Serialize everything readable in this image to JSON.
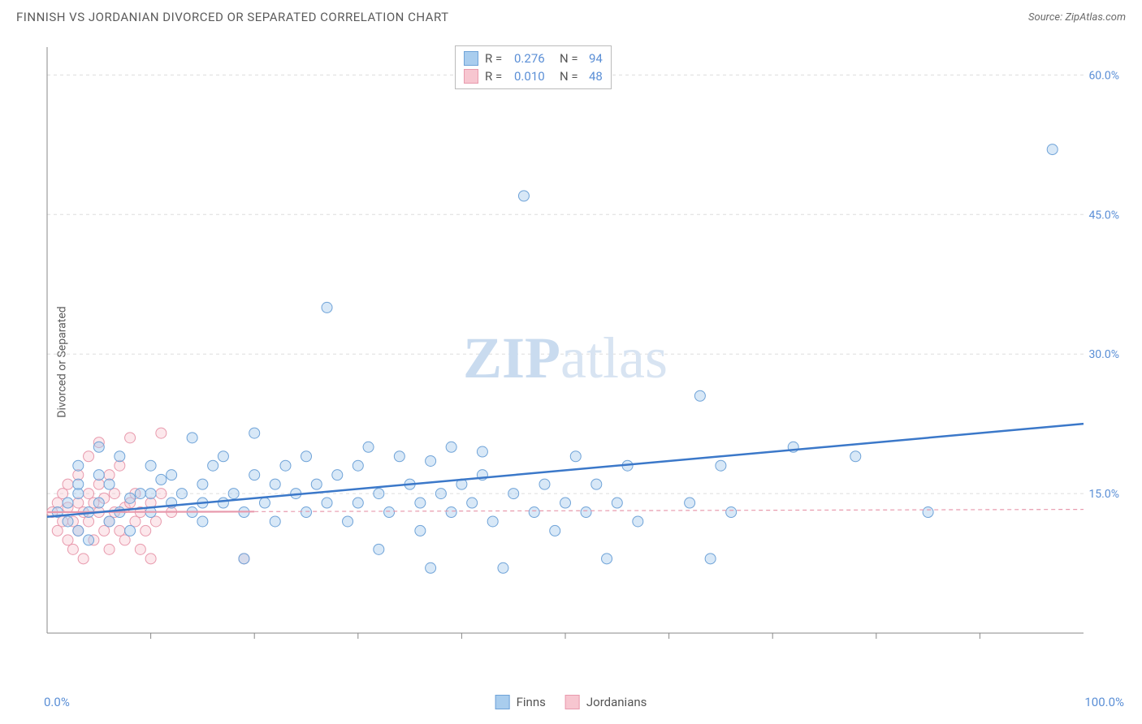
{
  "header": {
    "title": "FINNISH VS JORDANIAN DIVORCED OR SEPARATED CORRELATION CHART",
    "source_prefix": "Source: ",
    "source": "ZipAtlas.com"
  },
  "y_axis_label": "Divorced or Separated",
  "watermark": {
    "bold": "ZIP",
    "light": "atlas"
  },
  "chart": {
    "type": "scatter",
    "xlim": [
      0,
      100
    ],
    "ylim": [
      0,
      63
    ],
    "x_tick_min_label": "0.0%",
    "x_tick_max_label": "100.0%",
    "y_ticks": [
      {
        "v": 15,
        "label": "15.0%"
      },
      {
        "v": 30,
        "label": "30.0%"
      },
      {
        "v": 45,
        "label": "45.0%"
      },
      {
        "v": 60,
        "label": "60.0%"
      }
    ],
    "x_minor_ticks": [
      10,
      20,
      30,
      40,
      50,
      60,
      70,
      80,
      90
    ],
    "background_color": "#ffffff",
    "grid_color": "#dddddd",
    "point_radius": 6.5,
    "series": [
      {
        "key": "finns",
        "name": "Finns",
        "color_fill": "#a9cdee",
        "color_stroke": "#6fa3d8",
        "trend": {
          "x1": 0,
          "y1": 12.5,
          "x2": 100,
          "y2": 22.5,
          "color": "#3b78c9",
          "dash": false
        },
        "R": "0.276",
        "N": "94",
        "points": [
          [
            1,
            13
          ],
          [
            2,
            12
          ],
          [
            2,
            14
          ],
          [
            3,
            11
          ],
          [
            3,
            15
          ],
          [
            3,
            18
          ],
          [
            4,
            13
          ],
          [
            4,
            10
          ],
          [
            5,
            20
          ],
          [
            5,
            14
          ],
          [
            6,
            16
          ],
          [
            6,
            12
          ],
          [
            7,
            13
          ],
          [
            7,
            19
          ],
          [
            8,
            14.5
          ],
          [
            8,
            11
          ],
          [
            9,
            15
          ],
          [
            10,
            18
          ],
          [
            10,
            13
          ],
          [
            11,
            16.5
          ],
          [
            12,
            14
          ],
          [
            12,
            17
          ],
          [
            13,
            15
          ],
          [
            14,
            13
          ],
          [
            14,
            21
          ],
          [
            15,
            16
          ],
          [
            15,
            12
          ],
          [
            16,
            18
          ],
          [
            17,
            14
          ],
          [
            17,
            19
          ],
          [
            18,
            15
          ],
          [
            19,
            13
          ],
          [
            19,
            8
          ],
          [
            20,
            17
          ],
          [
            20,
            21.5
          ],
          [
            21,
            14
          ],
          [
            22,
            16
          ],
          [
            22,
            12
          ],
          [
            23,
            18
          ],
          [
            24,
            15
          ],
          [
            25,
            19
          ],
          [
            25,
            13
          ],
          [
            26,
            16
          ],
          [
            27,
            14
          ],
          [
            27,
            35
          ],
          [
            28,
            17
          ],
          [
            29,
            12
          ],
          [
            30,
            18
          ],
          [
            30,
            14
          ],
          [
            31,
            20
          ],
          [
            32,
            15
          ],
          [
            32,
            9
          ],
          [
            33,
            13
          ],
          [
            34,
            19
          ],
          [
            35,
            16
          ],
          [
            36,
            14
          ],
          [
            36,
            11
          ],
          [
            37,
            7
          ],
          [
            37,
            18.5
          ],
          [
            38,
            15
          ],
          [
            39,
            13
          ],
          [
            39,
            20
          ],
          [
            40,
            16
          ],
          [
            41,
            14
          ],
          [
            42,
            17
          ],
          [
            42,
            19.5
          ],
          [
            43,
            12
          ],
          [
            44,
            7
          ],
          [
            45,
            15
          ],
          [
            46,
            47
          ],
          [
            47,
            13
          ],
          [
            48,
            16
          ],
          [
            49,
            11
          ],
          [
            50,
            14
          ],
          [
            51,
            19
          ],
          [
            52,
            13
          ],
          [
            53,
            16
          ],
          [
            54,
            8
          ],
          [
            55,
            14
          ],
          [
            56,
            18
          ],
          [
            57,
            12
          ],
          [
            62,
            14
          ],
          [
            63,
            25.5
          ],
          [
            64,
            8
          ],
          [
            65,
            18
          ],
          [
            66,
            13
          ],
          [
            72,
            20
          ],
          [
            78,
            19
          ],
          [
            85,
            13
          ],
          [
            97,
            52
          ],
          [
            3,
            16
          ],
          [
            5,
            17
          ],
          [
            10,
            15
          ],
          [
            15,
            14
          ]
        ]
      },
      {
        "key": "jordanians",
        "name": "Jordanians",
        "color_fill": "#f7c6d0",
        "color_stroke": "#e89aad",
        "trend": {
          "x1": 0,
          "y1": 13.0,
          "x2": 100,
          "y2": 13.3,
          "color": "#e89aad",
          "dash": true
        },
        "R": "0.010",
        "N": "48",
        "points": [
          [
            0.5,
            13
          ],
          [
            1,
            11
          ],
          [
            1,
            14
          ],
          [
            1.5,
            12
          ],
          [
            1.5,
            15
          ],
          [
            2,
            10
          ],
          [
            2,
            13.5
          ],
          [
            2,
            16
          ],
          [
            2.5,
            12
          ],
          [
            2.5,
            9
          ],
          [
            3,
            14
          ],
          [
            3,
            11
          ],
          [
            3,
            17
          ],
          [
            3.5,
            13
          ],
          [
            3.5,
            8
          ],
          [
            4,
            15
          ],
          [
            4,
            12
          ],
          [
            4,
            19
          ],
          [
            4.5,
            10
          ],
          [
            4.5,
            14
          ],
          [
            5,
            13
          ],
          [
            5,
            16
          ],
          [
            5,
            20.5
          ],
          [
            5.5,
            11
          ],
          [
            5.5,
            14.5
          ],
          [
            6,
            12
          ],
          [
            6,
            17
          ],
          [
            6,
            9
          ],
          [
            6.5,
            13
          ],
          [
            6.5,
            15
          ],
          [
            7,
            11
          ],
          [
            7,
            18
          ],
          [
            7.5,
            13.5
          ],
          [
            7.5,
            10
          ],
          [
            8,
            14
          ],
          [
            8,
            21
          ],
          [
            8.5,
            12
          ],
          [
            8.5,
            15
          ],
          [
            9,
            13
          ],
          [
            9,
            9
          ],
          [
            9.5,
            11
          ],
          [
            10,
            14
          ],
          [
            10,
            8
          ],
          [
            10.5,
            12
          ],
          [
            11,
            15
          ],
          [
            11,
            21.5
          ],
          [
            12,
            13
          ],
          [
            19,
            8
          ]
        ]
      }
    ]
  },
  "legend_top": {
    "r_label": "R =",
    "n_label": "N ="
  },
  "legend_bottom": {
    "items": [
      "Finns",
      "Jordanians"
    ]
  }
}
